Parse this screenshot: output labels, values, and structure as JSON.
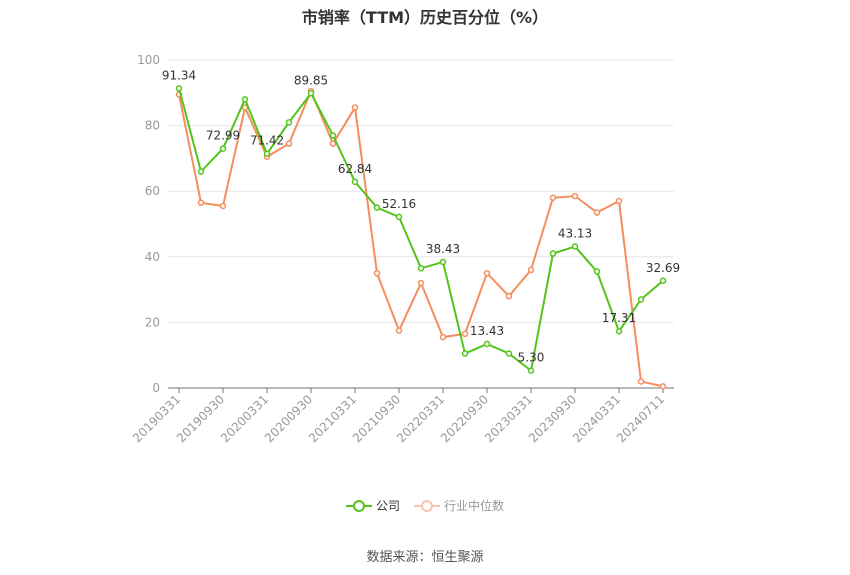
{
  "title": "市销率（TTM）历史百分位（%）",
  "source": "数据来源：恒生聚源",
  "legend": [
    {
      "label": "公司",
      "color": "#52c41a"
    },
    {
      "label": "行业中位数",
      "color": "#f58d5c"
    }
  ],
  "chart_data": {
    "type": "line",
    "title": "市销率（TTM）历史百分位（%）",
    "xlabel": "",
    "ylabel": "",
    "ylim": [
      0,
      100
    ],
    "yticks": [
      0,
      20,
      40,
      60,
      80,
      100
    ],
    "grid": true,
    "legend_position": "bottom",
    "x_tick_labels": [
      "20190331",
      "20190930",
      "20200331",
      "20200930",
      "20210331",
      "20210930",
      "20220331",
      "20220930",
      "20230331",
      "20230930",
      "20240331",
      "20240711"
    ],
    "x": [
      "20190331",
      "20190630",
      "20190930",
      "20191231",
      "20200331",
      "20200630",
      "20200930",
      "20201231",
      "20210331",
      "20210630",
      "20210930",
      "20211231",
      "20220331",
      "20220630",
      "20220930",
      "20221231",
      "20230331",
      "20230630",
      "20230930",
      "20231231",
      "20240331",
      "20240630",
      "20240711"
    ],
    "series": [
      {
        "name": "公司",
        "color": "#52c41a",
        "values": [
          91.34,
          66.0,
          72.99,
          88.0,
          71.42,
          81.0,
          89.85,
          77.0,
          62.84,
          55.0,
          52.16,
          36.5,
          38.43,
          10.5,
          13.43,
          10.5,
          5.3,
          41.0,
          43.13,
          35.5,
          17.31,
          27.0,
          32.69
        ],
        "labeled_points": {
          "0": "91.34",
          "2": "72.99",
          "4": "71.42",
          "6": "89.85",
          "8": "62.84",
          "10": "52.16",
          "12": "38.43",
          "14": "13.43",
          "16": "5.30",
          "18": "43.13",
          "20": "17.31",
          "22": "32.69"
        }
      },
      {
        "name": "行业中位数",
        "color": "#f58d5c",
        "values": [
          89.5,
          56.5,
          55.5,
          85.5,
          70.5,
          74.5,
          90.5,
          74.5,
          85.5,
          35.0,
          17.5,
          32.0,
          15.5,
          16.5,
          35.0,
          28.0,
          36.0,
          58.0,
          58.5,
          53.5,
          57.0,
          2.0,
          0.5
        ]
      }
    ]
  }
}
